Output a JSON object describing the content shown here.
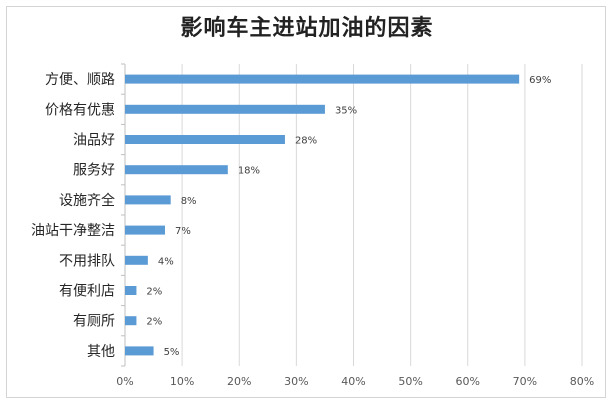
{
  "chart_data": {
    "type": "bar",
    "orientation": "horizontal",
    "title": "影响车主进站加油的因素",
    "categories": [
      "方便、顺路",
      "价格有优惠",
      "油品好",
      "服务好",
      "设施齐全",
      "油站干净整洁",
      "不用排队",
      "有便利店",
      "有厕所",
      "其他"
    ],
    "values": [
      69,
      35,
      28,
      18,
      8,
      7,
      4,
      2,
      2,
      5
    ],
    "data_labels": [
      "69%",
      "35%",
      "28%",
      "18%",
      "8%",
      "7%",
      "4%",
      "2%",
      "2%",
      "5%"
    ],
    "x_ticks": [
      "0%",
      "10%",
      "20%",
      "30%",
      "40%",
      "50%",
      "60%",
      "70%",
      "80%"
    ],
    "xlim": [
      0,
      80
    ],
    "grid": true,
    "legend": "none",
    "bar_color": "#5b9bd5"
  }
}
